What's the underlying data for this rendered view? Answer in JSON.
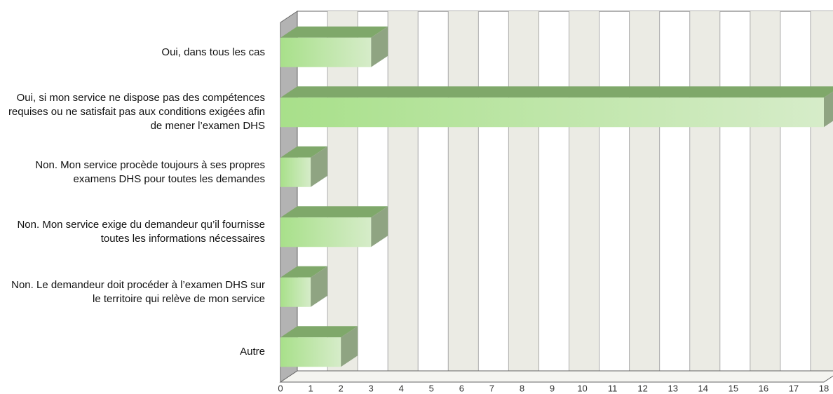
{
  "chart_data": {
    "type": "bar",
    "orientation": "horizontal",
    "categories": [
      "Oui, dans tous les cas",
      "Oui, si mon service ne dispose pas des compétences requises ou ne satisfait pas aux conditions exigées afin de mener l’examen DHS",
      "Non. Mon service procède toujours à ses propres examens DHS pour toutes les demandes",
      "Non. Mon service exige du demandeur qu’il fournisse toutes les informations nécessaires",
      "Non. Le demandeur doit procéder à l’examen DHS sur le territoire qui relève de mon service",
      "Autre"
    ],
    "values": [
      3,
      18,
      1,
      3,
      1,
      2
    ],
    "color": "#a8e08a",
    "xlim": [
      0,
      18
    ],
    "xticks": [
      0,
      1,
      2,
      3,
      4,
      5,
      6,
      7,
      8,
      9,
      10,
      11,
      12,
      13,
      14,
      15,
      16,
      17,
      18
    ],
    "grid": true
  }
}
